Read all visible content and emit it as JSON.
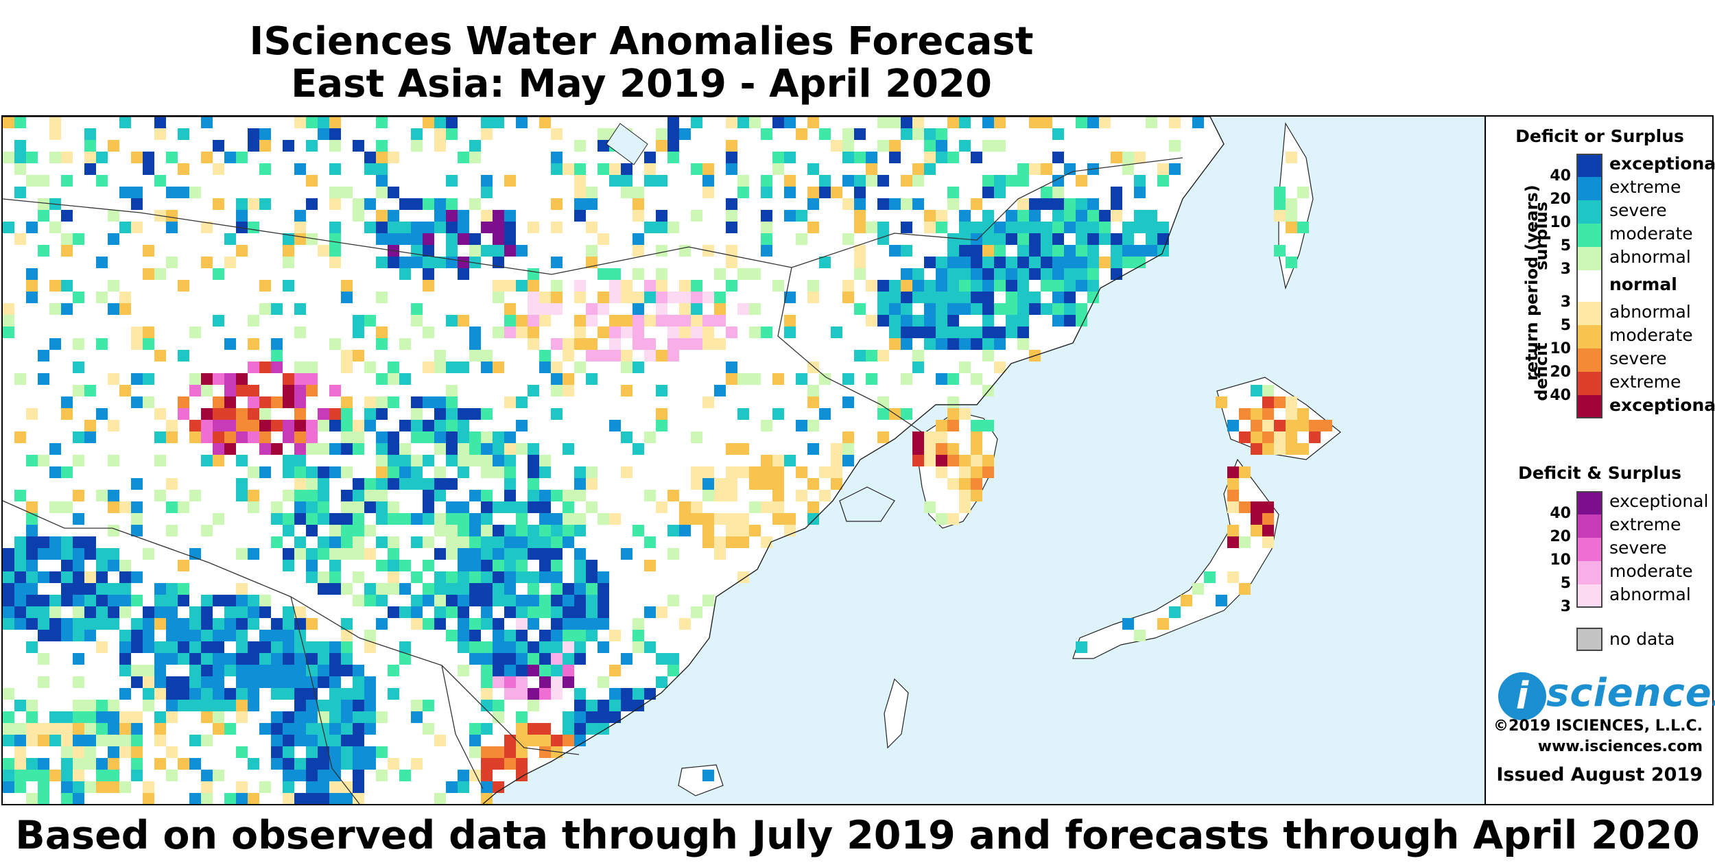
{
  "title_line1": "ISciences Water Anomalies Forecast",
  "title_line2": "East Asia: May 2019 - April 2020",
  "footer": "Based on observed data through July 2019 and forecasts through April 2020",
  "legend": {
    "deficit_surplus_heading": "Deficit or Surplus",
    "axis_label": "return period (years)",
    "surplus_label": "surplus",
    "deficit_label": "deficit",
    "surplus_numbers": [
      "40",
      "20",
      "10",
      "5",
      "3"
    ],
    "deficit_numbers": [
      "3",
      "5",
      "10",
      "20",
      "40"
    ],
    "surplus": [
      {
        "label": "exceptional",
        "color": "#0b3fad"
      },
      {
        "label": "extreme",
        "color": "#0e8fd6"
      },
      {
        "label": "severe",
        "color": "#1ec6c6"
      },
      {
        "label": "moderate",
        "color": "#3ee8a6"
      },
      {
        "label": "abnormal",
        "color": "#cdf7b4"
      }
    ],
    "normal_label": "normal",
    "deficit": [
      {
        "label": "abnormal",
        "color": "#fde8a6"
      },
      {
        "label": "moderate",
        "color": "#f8c34f"
      },
      {
        "label": "severe",
        "color": "#f58a36"
      },
      {
        "label": "extreme",
        "color": "#de3f2a"
      },
      {
        "label": "exceptional",
        "color": "#a2043a"
      }
    ],
    "both_heading": "Deficit & Surplus",
    "both_numbers": [
      "40",
      "20",
      "10",
      "5",
      "3"
    ],
    "both": [
      {
        "label": "exceptional",
        "color": "#7d0f8e"
      },
      {
        "label": "extreme",
        "color": "#c73ab8"
      },
      {
        "label": "severe",
        "color": "#ef6ed3"
      },
      {
        "label": "moderate",
        "color": "#f8aee6"
      },
      {
        "label": "abnormal",
        "color": "#fbdaf2"
      }
    ],
    "no_data_label": "no data",
    "no_data_color": "#c4c4c4"
  },
  "branding": {
    "logo_letter": "i",
    "logo_text": "sciences",
    "copyright": "©2019 ISCIENCES, L.L.C.",
    "website": "www.isciences.com",
    "issued": "Issued August 2019"
  },
  "colors": {
    "ocean": "#dff3fb",
    "land": "#ffffff"
  }
}
